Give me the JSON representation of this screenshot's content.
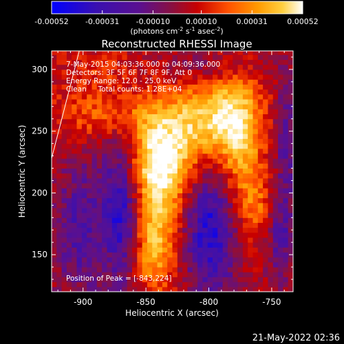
{
  "colorbar": {
    "ticks": [
      "-0.00052",
      "-0.00031",
      "-0.00010",
      "0.00010",
      "0.00031",
      "0.00052"
    ],
    "units": "(photons cm",
    "units_exp1": "-2",
    "units_mid": " s",
    "units_exp2": "-1",
    "units_end": " asec",
    "units_exp3": "-2",
    "units_close": ")"
  },
  "annotations": {
    "time": "7-May-2015 04:03:36.000 to 04:09:36.000",
    "detectors": "Detectors: 3F 5F 6F 7F 8F 9F, Att 0",
    "energy": "Energy Range: 12.0 - 25.0 keV",
    "method": "Clean     Total counts: 1.28E+04",
    "peak": "Position of Peak = [-843,224]"
  },
  "footer": {
    "date": "21-May-2022 02:36"
  },
  "chart_data": {
    "type": "heatmap",
    "title": "Reconstructed RHESSI Image",
    "xlabel": "Heliocentric X (arcsec)",
    "ylabel": "Heliocentric Y (arcsec)",
    "xlim": [
      -925,
      -733
    ],
    "ylim": [
      120,
      315
    ],
    "xticks": [
      "-900",
      "-850",
      "-800",
      "-750"
    ],
    "xtick_values": [
      -900,
      -850,
      -800,
      -750
    ],
    "yticks": [
      "150",
      "200",
      "250",
      "300"
    ],
    "ytick_values": [
      150,
      200,
      250,
      300
    ],
    "colorbar_range": [
      -0.00052,
      0.00052
    ],
    "colormap": [
      "#0000ff",
      "#3a10b0",
      "#5a1090",
      "#8a1040",
      "#c80000",
      "#ff5000",
      "#ff9a00",
      "#ffd040",
      "#ffffff"
    ],
    "peak_position": [
      -843,
      224
    ],
    "limb_line": [
      [
        -925,
        228
      ],
      [
        -903,
        315
      ]
    ],
    "pixel_size": 4,
    "emission_components": [
      {
        "x": -840,
        "y": 226,
        "sx": 20,
        "sy": 26,
        "amp": 0.00048
      },
      {
        "x": -800,
        "y": 258,
        "sx": 22,
        "sy": 22,
        "amp": 0.00044
      },
      {
        "x": -778,
        "y": 238,
        "sx": 12,
        "sy": 42,
        "amp": 0.00034
      },
      {
        "x": -845,
        "y": 183,
        "sx": 14,
        "sy": 40,
        "amp": 0.0003
      },
      {
        "x": -880,
        "y": 262,
        "sx": 30,
        "sy": 14,
        "amp": 0.00024
      },
      {
        "x": -848,
        "y": 150,
        "sx": 12,
        "sy": 22,
        "amp": 0.0002
      },
      {
        "x": -765,
        "y": 188,
        "sx": 8,
        "sy": 20,
        "amp": 0.0002
      },
      {
        "x": -885,
        "y": 298,
        "sx": 24,
        "sy": 12,
        "amp": 0.00012
      }
    ],
    "negative_regions": [
      {
        "x": -870,
        "y": 190,
        "sx": 12,
        "sy": 48,
        "amp": -0.00042
      },
      {
        "x": -800,
        "y": 170,
        "sx": 16,
        "sy": 42,
        "amp": -0.0004
      },
      {
        "x": -905,
        "y": 170,
        "sx": 14,
        "sy": 40,
        "amp": -0.00026
      },
      {
        "x": -740,
        "y": 240,
        "sx": 6,
        "sy": 40,
        "amp": -0.00024
      },
      {
        "x": -745,
        "y": 160,
        "sx": 8,
        "sy": 25,
        "amp": -0.00022
      },
      {
        "x": -800,
        "y": 300,
        "sx": 30,
        "sy": 10,
        "amp": -0.00012
      }
    ]
  }
}
